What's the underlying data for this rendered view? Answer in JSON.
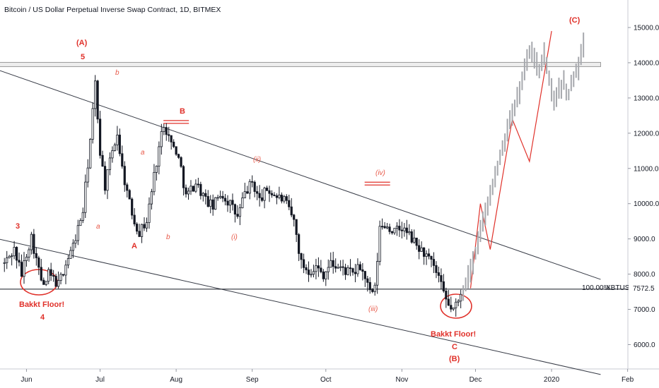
{
  "chart_data": {
    "type": "candlestick",
    "title": "Bitcoin / US Dollar Perpetual Inverse Swap Contract, 1D, BITMEX",
    "symbol": "XBTUSD",
    "last_price_label": "7572.5",
    "level_label": "100.00%",
    "ylim": [
      5300,
      15800
    ],
    "y_ticks": [
      6000,
      7000,
      8000,
      9000,
      10000,
      11000,
      12000,
      13000,
      14000,
      15000
    ],
    "y_tick_labels": [
      "6000.0",
      "7000.0",
      "8000.0",
      "9000.0",
      "10000.0",
      "11000.0",
      "12000.0",
      "13000.0",
      "14000.0",
      "15000.0"
    ],
    "x_months": [
      {
        "label": "Jun",
        "day": 1
      },
      {
        "label": "Jul",
        "day": 31
      },
      {
        "label": "Aug",
        "day": 62
      },
      {
        "label": "Sep",
        "day": 93
      },
      {
        "label": "Oct",
        "day": 123
      },
      {
        "label": "Nov",
        "day": 154
      },
      {
        "label": "Dec",
        "day": 184
      },
      {
        "label": "2020",
        "day": 215
      },
      {
        "label": "Feb",
        "day": 246
      }
    ],
    "price_anchors": [
      [
        -8,
        8300
      ],
      [
        -4,
        8700
      ],
      [
        -1,
        8000
      ],
      [
        1,
        8600
      ],
      [
        3,
        9050
      ],
      [
        6,
        8100
      ],
      [
        8,
        7600
      ],
      [
        10,
        8000
      ],
      [
        14,
        7700
      ],
      [
        17,
        8300
      ],
      [
        20,
        8800
      ],
      [
        24,
        9800
      ],
      [
        27,
        11800
      ],
      [
        29,
        13400
      ],
      [
        31,
        11500
      ],
      [
        33,
        10500
      ],
      [
        36,
        11500
      ],
      [
        38,
        12000
      ],
      [
        40,
        11000
      ],
      [
        43,
        10000
      ],
      [
        45,
        9500
      ],
      [
        47,
        9200
      ],
      [
        50,
        9500
      ],
      [
        53,
        10800
      ],
      [
        55,
        11600
      ],
      [
        57,
        12300
      ],
      [
        60,
        11700
      ],
      [
        62,
        11500
      ],
      [
        64,
        11000
      ],
      [
        66,
        10200
      ],
      [
        70,
        10600
      ],
      [
        74,
        10100
      ],
      [
        77,
        9900
      ],
      [
        80,
        10300
      ],
      [
        84,
        10000
      ],
      [
        87,
        9600
      ],
      [
        90,
        10300
      ],
      [
        93,
        10600
      ],
      [
        96,
        10100
      ],
      [
        99,
        10400
      ],
      [
        103,
        10200
      ],
      [
        106,
        10100
      ],
      [
        110,
        9500
      ],
      [
        113,
        8300
      ],
      [
        116,
        8100
      ],
      [
        119,
        8200
      ],
      [
        122,
        8000
      ],
      [
        125,
        8300
      ],
      [
        128,
        8200
      ],
      [
        131,
        8100
      ],
      [
        134,
        8000
      ],
      [
        137,
        8200
      ],
      [
        139,
        7900
      ],
      [
        141,
        7450
      ],
      [
        143,
        7550
      ],
      [
        145,
        9300
      ],
      [
        147,
        9400
      ],
      [
        151,
        9200
      ],
      [
        154,
        9300
      ],
      [
        157,
        9100
      ],
      [
        160,
        8800
      ],
      [
        163,
        8600
      ],
      [
        166,
        8300
      ],
      [
        169,
        7900
      ],
      [
        171,
        7400
      ],
      [
        173,
        7100
      ],
      [
        175,
        7000
      ],
      [
        177,
        7200
      ],
      [
        178,
        7500
      ]
    ],
    "projection_anchors": [
      [
        179,
        7500
      ],
      [
        181,
        7900
      ],
      [
        184,
        8600
      ],
      [
        187,
        9500
      ],
      [
        190,
        10200
      ],
      [
        193,
        11000
      ],
      [
        196,
        11800
      ],
      [
        199,
        12500
      ],
      [
        202,
        13200
      ],
      [
        204,
        13800
      ],
      [
        206,
        14300
      ],
      [
        208,
        14100
      ],
      [
        210,
        13800
      ],
      [
        212,
        14300
      ],
      [
        214,
        13500
      ],
      [
        216,
        13000
      ],
      [
        218,
        13200
      ],
      [
        220,
        13400
      ],
      [
        222,
        13100
      ],
      [
        224,
        13600
      ],
      [
        226,
        13900
      ],
      [
        228,
        14500
      ]
    ],
    "wave_path": [
      [
        182,
        7600
      ],
      [
        186,
        10000
      ],
      [
        190,
        8700
      ],
      [
        199,
        12400
      ],
      [
        206,
        11200
      ],
      [
        215,
        14900
      ]
    ],
    "trend_lines": [
      {
        "from": [
          -17,
          13950
        ],
        "to": [
          235,
          7850
        ]
      },
      {
        "from": [
          -17,
          9100
        ],
        "to": [
          235,
          5150
        ]
      }
    ],
    "horizontal_levels": [
      {
        "price": 7572.5,
        "from_day": -17,
        "label": "100.00%"
      },
      {
        "price": 13950,
        "from_day": -19,
        "to_day": 235,
        "style": "band"
      }
    ],
    "labels": {
      "w3": "3",
      "w4": "4",
      "w5": "5",
      "wA_outer": "(A)",
      "wB_outer": "(B)",
      "wC_outer": "(C)",
      "wA": "A",
      "wB": "B",
      "wC": "C",
      "wb_top": "b",
      "wa_left": "a",
      "wa_mid": "a",
      "wb_mid": "b",
      "wi": "(i)",
      "wii": "(ii)",
      "wiii": "(iii)",
      "wiv": "(iv)",
      "bakkt_left": "Bakkt Floor!",
      "bakkt_right": "Bakkt Floor!"
    }
  }
}
